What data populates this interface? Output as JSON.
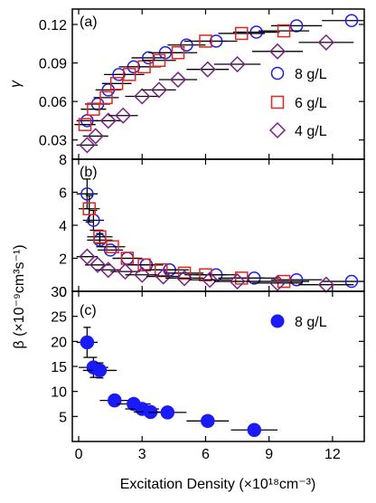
{
  "chart_data": [
    {
      "type": "scatter",
      "panel_label": "(a)",
      "ylabel": "γ",
      "xlim": [
        -0.3,
        13.5
      ],
      "ylim": [
        0.015,
        0.132
      ],
      "yticks": [
        0.03,
        0.06,
        0.09,
        0.12
      ],
      "ytick_labels": [
        "0.03",
        "0.06",
        "0.09",
        "0.12"
      ],
      "xticks": [
        0,
        3,
        6,
        9,
        12
      ],
      "legend_placement": "right",
      "series": [
        {
          "name": "8 g/L",
          "marker": "circle",
          "color": "#1a1aff",
          "filled": false,
          "points": [
            {
              "x": 0.4,
              "y": 0.045,
              "xerr": 0.5
            },
            {
              "x": 0.9,
              "y": 0.058,
              "xerr": 0.6
            },
            {
              "x": 1.4,
              "y": 0.069,
              "xerr": 0.6
            },
            {
              "x": 1.9,
              "y": 0.081,
              "xerr": 0.7
            },
            {
              "x": 2.6,
              "y": 0.087,
              "xerr": 0.7
            },
            {
              "x": 3.3,
              "y": 0.094,
              "xerr": 0.8
            },
            {
              "x": 4.1,
              "y": 0.098,
              "xerr": 0.8
            },
            {
              "x": 5.1,
              "y": 0.104,
              "xerr": 0.9
            },
            {
              "x": 6.5,
              "y": 0.107,
              "xerr": 1.0
            },
            {
              "x": 8.4,
              "y": 0.114,
              "xerr": 1.1
            },
            {
              "x": 10.3,
              "y": 0.119,
              "xerr": 1.2
            },
            {
              "x": 12.9,
              "y": 0.123,
              "xerr": 1.4
            }
          ]
        },
        {
          "name": "6 g/L",
          "marker": "square",
          "color": "#e8231b",
          "filled": false,
          "points": [
            {
              "x": 0.3,
              "y": 0.042,
              "xerr": 0.5
            },
            {
              "x": 0.7,
              "y": 0.054,
              "xerr": 0.6
            },
            {
              "x": 1.3,
              "y": 0.063,
              "xerr": 0.6
            },
            {
              "x": 1.8,
              "y": 0.074,
              "xerr": 0.7
            },
            {
              "x": 2.4,
              "y": 0.081,
              "xerr": 0.7
            },
            {
              "x": 3.1,
              "y": 0.087,
              "xerr": 0.8
            },
            {
              "x": 3.8,
              "y": 0.092,
              "xerr": 0.8
            },
            {
              "x": 4.7,
              "y": 0.098,
              "xerr": 0.9
            },
            {
              "x": 6.0,
              "y": 0.107,
              "xerr": 1.0
            },
            {
              "x": 7.7,
              "y": 0.113,
              "xerr": 1.1
            },
            {
              "x": 9.7,
              "y": 0.115,
              "xerr": 1.2
            }
          ]
        },
        {
          "name": "4 g/L",
          "marker": "diamond",
          "color": "#7b2182",
          "filled": false,
          "points": [
            {
              "x": 0.4,
              "y": 0.026,
              "xerr": 0.5
            },
            {
              "x": 0.8,
              "y": 0.033,
              "xerr": 0.6
            },
            {
              "x": 1.4,
              "y": 0.045,
              "xerr": 0.6
            },
            {
              "x": 2.1,
              "y": 0.049,
              "xerr": 0.7
            },
            {
              "x": 3.0,
              "y": 0.064,
              "xerr": 0.8
            },
            {
              "x": 3.8,
              "y": 0.069,
              "xerr": 0.8
            },
            {
              "x": 4.7,
              "y": 0.077,
              "xerr": 0.9
            },
            {
              "x": 6.1,
              "y": 0.085,
              "xerr": 1.0
            },
            {
              "x": 7.5,
              "y": 0.089,
              "xerr": 1.1
            },
            {
              "x": 9.4,
              "y": 0.099,
              "xerr": 1.2
            },
            {
              "x": 11.7,
              "y": 0.106,
              "xerr": 1.3
            }
          ]
        }
      ]
    },
    {
      "type": "scatter",
      "panel_label": "(b)",
      "ylabel": "β (×10⁻⁹cm³s⁻¹)",
      "xlim": [
        -0.3,
        13.5
      ],
      "ylim": [
        0,
        8
      ],
      "yticks": [
        0,
        2,
        4,
        6,
        8
      ],
      "ytick_labels": [
        "0",
        "2",
        "4",
        "6",
        "8"
      ],
      "xticks": [
        0,
        3,
        6,
        9,
        12
      ],
      "series": [
        {
          "name": "8 g/L",
          "marker": "circle",
          "color": "#1a1aff",
          "filled": false,
          "points": [
            {
              "x": 0.4,
              "y": 5.9,
              "xerr": 0.5,
              "yerr": 0.9
            },
            {
              "x": 0.7,
              "y": 4.3,
              "xerr": 0.5,
              "yerr": 0.6
            },
            {
              "x": 1.0,
              "y": 3.1,
              "xerr": 0.6,
              "yerr": 0.4
            },
            {
              "x": 1.5,
              "y": 2.5,
              "xerr": 0.6
            },
            {
              "x": 2.3,
              "y": 2.0,
              "xerr": 0.7
            },
            {
              "x": 3.2,
              "y": 1.6,
              "xerr": 0.8
            },
            {
              "x": 4.3,
              "y": 1.3,
              "xerr": 0.9
            },
            {
              "x": 6.5,
              "y": 1.0,
              "xerr": 1.0
            },
            {
              "x": 8.3,
              "y": 0.8,
              "xerr": 1.1
            },
            {
              "x": 10.3,
              "y": 0.7,
              "xerr": 1.2
            },
            {
              "x": 12.9,
              "y": 0.6,
              "xerr": 1.4
            }
          ]
        },
        {
          "name": "6 g/L",
          "marker": "square",
          "color": "#e8231b",
          "filled": false,
          "points": [
            {
              "x": 0.5,
              "y": 5.0,
              "xerr": 0.5,
              "yerr": 0.8
            },
            {
              "x": 1.0,
              "y": 3.3,
              "xerr": 0.6,
              "yerr": 0.4
            },
            {
              "x": 1.6,
              "y": 2.7,
              "xerr": 0.6
            },
            {
              "x": 2.3,
              "y": 2.0,
              "xerr": 0.7
            },
            {
              "x": 3.1,
              "y": 1.6,
              "xerr": 0.8
            },
            {
              "x": 3.9,
              "y": 1.3,
              "xerr": 0.8
            },
            {
              "x": 5.0,
              "y": 1.1,
              "xerr": 0.9
            },
            {
              "x": 6.0,
              "y": 1.0,
              "xerr": 1.0
            },
            {
              "x": 7.7,
              "y": 0.8,
              "xerr": 1.1
            },
            {
              "x": 9.7,
              "y": 0.6,
              "xerr": 1.2
            }
          ]
        },
        {
          "name": "4 g/L",
          "marker": "diamond",
          "color": "#7b2182",
          "filled": false,
          "points": [
            {
              "x": 0.4,
              "y": 2.1,
              "xerr": 0.5
            },
            {
              "x": 0.9,
              "y": 1.6,
              "xerr": 0.6
            },
            {
              "x": 1.4,
              "y": 1.3,
              "xerr": 0.6
            },
            {
              "x": 2.2,
              "y": 1.2,
              "xerr": 0.7
            },
            {
              "x": 3.0,
              "y": 1.0,
              "xerr": 0.8
            },
            {
              "x": 4.0,
              "y": 0.9,
              "xerr": 0.8
            },
            {
              "x": 5.0,
              "y": 0.8,
              "xerr": 0.9
            },
            {
              "x": 6.2,
              "y": 0.7,
              "xerr": 1.0
            },
            {
              "x": 7.5,
              "y": 0.6,
              "xerr": 1.1
            },
            {
              "x": 9.4,
              "y": 0.5,
              "xerr": 1.2
            },
            {
              "x": 11.7,
              "y": 0.4,
              "xerr": 1.3
            }
          ]
        }
      ]
    },
    {
      "type": "scatter",
      "panel_label": "(c)",
      "ylabel": "",
      "xlabel": "Excitation Density (×10¹⁸cm⁻³)",
      "xlim": [
        -0.3,
        13.5
      ],
      "ylim": [
        0,
        30
      ],
      "yticks": [
        5,
        10,
        15,
        20,
        25,
        30
      ],
      "ytick_labels": [
        "5",
        "10",
        "15",
        "20",
        "25",
        "30"
      ],
      "xticks": [
        0,
        3,
        6,
        9,
        12
      ],
      "xtick_labels": [
        "0",
        "3",
        "6",
        "9",
        "12"
      ],
      "legend_placement": "top-right",
      "series": [
        {
          "name": "8 g/L",
          "marker": "circle",
          "color": "#1a1aff",
          "filled": true,
          "points": [
            {
              "x": 0.4,
              "y": 19.8,
              "xerr": 0.5,
              "yerr": 3.0
            },
            {
              "x": 0.7,
              "y": 14.8,
              "xerr": 0.7,
              "yerr": 2.0
            },
            {
              "x": 1.0,
              "y": 14.2,
              "xerr": 0.8,
              "yerr": 1.5
            },
            {
              "x": 1.7,
              "y": 8.2,
              "xerr": 0.7
            },
            {
              "x": 2.6,
              "y": 7.5,
              "xerr": 0.8
            },
            {
              "x": 3.0,
              "y": 6.5,
              "xerr": 0.8
            },
            {
              "x": 3.4,
              "y": 5.9,
              "xerr": 0.8
            },
            {
              "x": 4.2,
              "y": 5.8,
              "xerr": 0.9
            },
            {
              "x": 6.1,
              "y": 4.1,
              "xerr": 1.0
            },
            {
              "x": 8.3,
              "y": 2.3,
              "xerr": 1.1
            }
          ]
        }
      ]
    }
  ]
}
